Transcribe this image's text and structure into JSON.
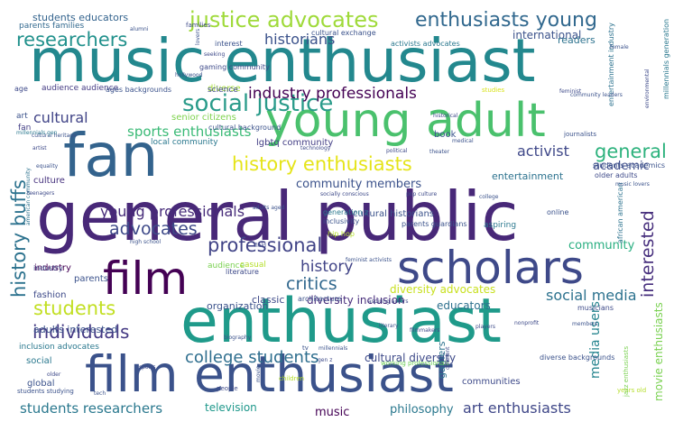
{
  "words": [
    {
      "text": "general public",
      "color": "#482878"
    },
    {
      "text": "music enthusiast",
      "color": "#23888e"
    },
    {
      "text": "enthusiast",
      "color": "#1f9a8a"
    },
    {
      "text": "film enthusiast",
      "color": "#3b528b"
    },
    {
      "text": "young adult",
      "color": "#4ac16d"
    },
    {
      "text": "fan",
      "color": "#33638d"
    },
    {
      "text": "scholars",
      "color": "#3e4989"
    },
    {
      "text": "film",
      "color": "#440154"
    },
    {
      "text": "social justice",
      "color": "#2a9b8a"
    },
    {
      "text": "justice advocates",
      "color": "#9fda3a"
    },
    {
      "text": "enthusiasts young",
      "color": "#31688e"
    },
    {
      "text": "researchers",
      "color": "#21918c"
    },
    {
      "text": "historians",
      "color": "#3b528b"
    },
    {
      "text": "history enthusiasts",
      "color": "#e5e419"
    },
    {
      "text": "industry professionals",
      "color": "#440154"
    },
    {
      "text": "professional",
      "color": "#414487"
    },
    {
      "text": "history buffs",
      "color": "#2c728e"
    },
    {
      "text": "individuals",
      "color": "#443983"
    },
    {
      "text": "students",
      "color": "#c2df23"
    },
    {
      "text": "college students",
      "color": "#2e6e8e"
    },
    {
      "text": "general",
      "color": "#2db27d"
    },
    {
      "text": "interested",
      "color": "#472f7d"
    },
    {
      "text": "advocates",
      "color": "#3e4a89"
    },
    {
      "text": "critics",
      "color": "#31688e"
    },
    {
      "text": "history",
      "color": "#414487"
    },
    {
      "text": "young professionals",
      "color": "#472c7a"
    },
    {
      "text": "social media",
      "color": "#2c728e"
    },
    {
      "text": "art enthusiasts",
      "color": "#3f4788"
    },
    {
      "text": "students researchers",
      "color": "#2a788e"
    },
    {
      "text": "sports enthusiasts",
      "color": "#3aba76"
    },
    {
      "text": "activist",
      "color": "#3f4889"
    },
    {
      "text": "cultural",
      "color": "#414487"
    },
    {
      "text": "community members",
      "color": "#3b528b"
    },
    {
      "text": "community",
      "color": "#28ae80"
    },
    {
      "text": "academic",
      "color": "#3e4c8a"
    },
    {
      "text": "media users",
      "color": "#25848e"
    },
    {
      "text": "movie enthusiasts",
      "color": "#7ad151"
    },
    {
      "text": "adults interested",
      "color": "#3b528b"
    },
    {
      "text": "cultural diversity",
      "color": "#3e4a89"
    },
    {
      "text": "diversity inclusion",
      "color": "#472d7b"
    },
    {
      "text": "diversity advocates",
      "color": "#c8e020"
    },
    {
      "text": "educators",
      "color": "#2d708e"
    },
    {
      "text": "music",
      "color": "#440154"
    },
    {
      "text": "philosophy",
      "color": "#2a788e"
    },
    {
      "text": "television",
      "color": "#1f988b"
    },
    {
      "text": "organization",
      "color": "#3b528b"
    },
    {
      "text": "classic",
      "color": "#3e4a89"
    },
    {
      "text": "students educators",
      "color": "#33638d"
    },
    {
      "text": "parents families",
      "color": "#31688e"
    },
    {
      "text": "international",
      "color": "#3b528b"
    },
    {
      "text": "readers",
      "color": "#2c728e"
    },
    {
      "text": "diverse",
      "color": "#a5db36"
    },
    {
      "text": "science",
      "color": "#3e4a89"
    },
    {
      "text": "senior citizens",
      "color": "#7fd34e"
    },
    {
      "text": "audience audience",
      "color": "#443a83"
    },
    {
      "text": "local community",
      "color": "#2a788e"
    },
    {
      "text": "lgbtq community",
      "color": "#433e85"
    },
    {
      "text": "book",
      "color": "#3a548c"
    },
    {
      "text": "culture",
      "color": "#46327e"
    },
    {
      "text": "entertainment",
      "color": "#2c728e"
    },
    {
      "text": "industry",
      "color": "#440154"
    },
    {
      "text": "fashion",
      "color": "#3e4a89"
    },
    {
      "text": "parents",
      "color": "#3b528b"
    },
    {
      "text": "social",
      "color": "#2a788e"
    },
    {
      "text": "global",
      "color": "#3b528b"
    },
    {
      "text": "communities",
      "color": "#3e4a89"
    },
    {
      "text": "gamers",
      "color": "#2c728e"
    },
    {
      "text": "online",
      "color": "#3b528b"
    },
    {
      "text": "aspiring",
      "color": "#2a788e"
    },
    {
      "text": "cultural historians",
      "color": "#3b528b"
    },
    {
      "text": "audience",
      "color": "#7ad151"
    },
    {
      "text": "casual",
      "color": "#b5de2b"
    },
    {
      "text": "inclusion advocates",
      "color": "#2a788e"
    },
    {
      "text": "fan",
      "color": "#433e85"
    },
    {
      "text": "art",
      "color": "#3b528b"
    },
    {
      "text": "cultural background",
      "color": "#3b528b"
    },
    {
      "text": "industry",
      "color": "#3e4a89"
    },
    {
      "text": "millennials generation",
      "color": "#2a788e"
    },
    {
      "text": "interest",
      "color": "#3b528b"
    },
    {
      "text": "activists advocates",
      "color": "#2a788e"
    },
    {
      "text": "gaming community",
      "color": "#3e4a89"
    },
    {
      "text": "cultural exchange",
      "color": "#3b528b"
    },
    {
      "text": "entertainment industry",
      "color": "#2c728e"
    },
    {
      "text": "age",
      "color": "#3e4a89"
    },
    {
      "text": "ages backgrounds",
      "color": "#3b528b"
    },
    {
      "text": "generation z",
      "color": "#2a788e"
    },
    {
      "text": "inclusivity",
      "color": "#3b528b"
    },
    {
      "text": "hip hop",
      "color": "#b5de2b"
    },
    {
      "text": "students academics",
      "color": "#3b528b"
    },
    {
      "text": "older adults",
      "color": "#3e4a89"
    },
    {
      "text": "african american",
      "color": "#2c728e"
    },
    {
      "text": "parents guardians",
      "color": "#3b528b"
    },
    {
      "text": "literature",
      "color": "#3e4a89"
    },
    {
      "text": "architecture",
      "color": "#3b528b"
    },
    {
      "text": "musicians",
      "color": "#3e4a89"
    },
    {
      "text": "diverse backgrounds",
      "color": "#3b528b"
    },
    {
      "text": "working professionals",
      "color": "#6ece58"
    },
    {
      "text": "students studying",
      "color": "#3b528b"
    },
    {
      "text": "people",
      "color": "#3e4a89"
    },
    {
      "text": "children",
      "color": "#b5de2b"
    },
    {
      "text": "years old",
      "color": "#b5de2b"
    },
    {
      "text": "jazz enthusiasts",
      "color": "#7ad151"
    },
    {
      "text": "journalists",
      "color": "#3b528b"
    },
    {
      "text": "sports",
      "color": "#3e4a89"
    },
    {
      "text": "high school",
      "color": "#3b528b"
    },
    {
      "text": "field",
      "color": "#3e4a89"
    },
    {
      "text": "adults aged",
      "color": "#3b528b"
    },
    {
      "text": "socially conscious",
      "color": "#3e4a89"
    },
    {
      "text": "college",
      "color": "#3b528b"
    },
    {
      "text": "historical",
      "color": "#3e4a89"
    },
    {
      "text": "medical",
      "color": "#3b528b"
    },
    {
      "text": "feminist",
      "color": "#3e4a89"
    },
    {
      "text": "cultural heritage",
      "color": "#3b528b"
    },
    {
      "text": "artist",
      "color": "#3e4a89"
    },
    {
      "text": "lovers",
      "color": "#3b528b"
    },
    {
      "text": "seeking",
      "color": "#3e4a89"
    },
    {
      "text": "hollywood",
      "color": "#3b528b"
    },
    {
      "text": "technology",
      "color": "#3e4a89"
    },
    {
      "text": "millennials gen",
      "color": "#2a788e"
    },
    {
      "text": "tv",
      "color": "#3b528b"
    },
    {
      "text": "studies",
      "color": "#d8e219"
    },
    {
      "text": "families",
      "color": "#3e4a89"
    },
    {
      "text": "movie",
      "color": "#3b528b"
    },
    {
      "text": "different",
      "color": "#3e4a89"
    },
    {
      "text": "equality",
      "color": "#3b528b"
    },
    {
      "text": "american community",
      "color": "#2c728e"
    },
    {
      "text": "music lovers",
      "color": "#3b528b"
    },
    {
      "text": "teenagers",
      "color": "#3e4a89"
    },
    {
      "text": "tech",
      "color": "#3b528b"
    },
    {
      "text": "older",
      "color": "#3e4a89"
    },
    {
      "text": "members",
      "color": "#3b528b"
    },
    {
      "text": "players",
      "color": "#3e4a89"
    },
    {
      "text": "theater",
      "color": "#3b528b"
    },
    {
      "text": "pop culture",
      "color": "#3e4a89"
    },
    {
      "text": "feminist activists",
      "color": "#3b528b"
    },
    {
      "text": "filmmakers",
      "color": "#3e4a89"
    },
    {
      "text": "community leaders",
      "color": "#3b528b"
    },
    {
      "text": "political",
      "color": "#3e4a89"
    },
    {
      "text": "biography",
      "color": "#3b528b"
    },
    {
      "text": "aspiring actors",
      "color": "#3e4a89"
    },
    {
      "text": "millennials",
      "color": "#3b528b"
    },
    {
      "text": "gen z",
      "color": "#3e4a89"
    },
    {
      "text": "literary",
      "color": "#3b528b"
    },
    {
      "text": "nonprofit",
      "color": "#3e4a89"
    },
    {
      "text": "alumni",
      "color": "#3b528b"
    },
    {
      "text": "environmental",
      "color": "#3e4a89"
    },
    {
      "text": "female",
      "color": "#3b528b"
    }
  ]
}
